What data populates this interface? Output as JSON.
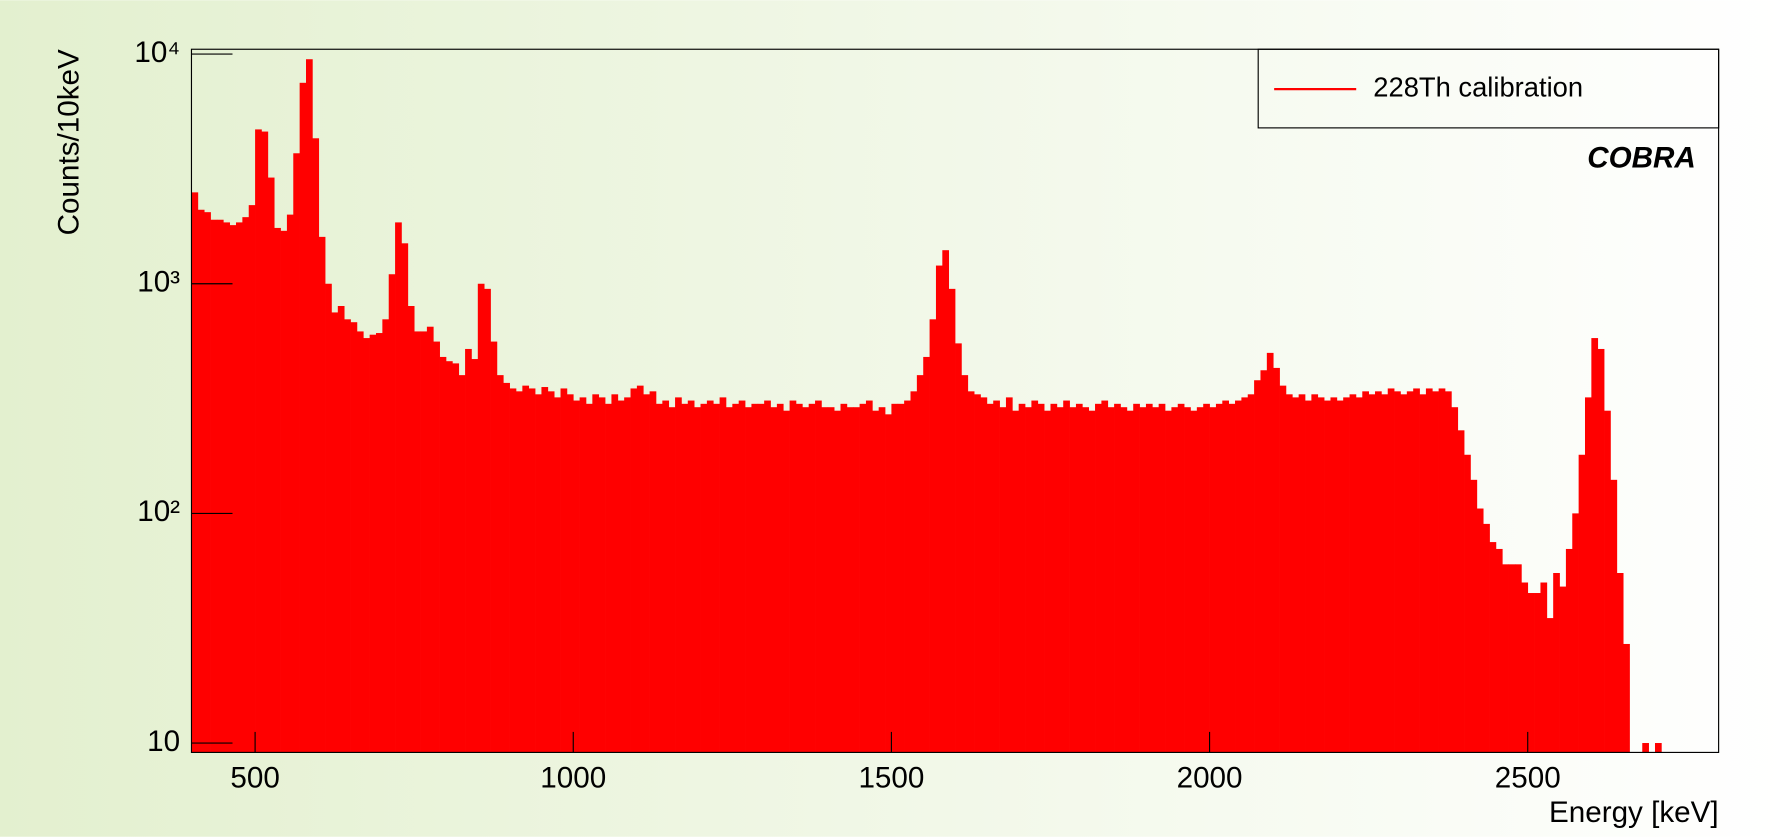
{
  "chart_data": {
    "type": "histogram",
    "xlabel": "Energy [keV]",
    "ylabel": "Counts/10keV",
    "annotation": "COBRA",
    "log_y": true,
    "legend": "upper right",
    "series": [
      {
        "name": "228Th calibration",
        "color": "#ff0000",
        "bins": [
          400,
          410,
          420,
          430,
          440,
          450,
          460,
          470,
          480,
          490,
          500,
          510,
          520,
          530,
          540,
          550,
          560,
          570,
          580,
          590,
          600,
          610,
          620,
          630,
          640,
          650,
          660,
          670,
          680,
          690,
          700,
          710,
          720,
          730,
          740,
          750,
          760,
          770,
          780,
          790,
          800,
          810,
          820,
          830,
          840,
          850,
          860,
          870,
          880,
          890,
          900,
          910,
          920,
          930,
          940,
          950,
          960,
          970,
          980,
          990,
          1000,
          1010,
          1020,
          1030,
          1040,
          1050,
          1060,
          1070,
          1080,
          1090,
          1100,
          1110,
          1120,
          1130,
          1140,
          1150,
          1160,
          1170,
          1180,
          1190,
          1200,
          1210,
          1220,
          1230,
          1240,
          1250,
          1260,
          1270,
          1280,
          1290,
          1300,
          1310,
          1320,
          1330,
          1340,
          1350,
          1360,
          1370,
          1380,
          1390,
          1400,
          1410,
          1420,
          1430,
          1440,
          1450,
          1460,
          1470,
          1480,
          1490,
          1500,
          1510,
          1520,
          1530,
          1540,
          1550,
          1560,
          1570,
          1580,
          1590,
          1600,
          1610,
          1620,
          1630,
          1640,
          1650,
          1660,
          1670,
          1680,
          1690,
          1700,
          1710,
          1720,
          1730,
          1740,
          1750,
          1760,
          1770,
          1780,
          1790,
          1800,
          1810,
          1820,
          1830,
          1840,
          1850,
          1860,
          1870,
          1880,
          1890,
          1900,
          1910,
          1920,
          1930,
          1940,
          1950,
          1960,
          1970,
          1980,
          1990,
          2000,
          2010,
          2020,
          2030,
          2040,
          2050,
          2060,
          2070,
          2080,
          2090,
          2100,
          2110,
          2120,
          2130,
          2140,
          2150,
          2160,
          2170,
          2180,
          2190,
          2200,
          2210,
          2220,
          2230,
          2240,
          2250,
          2260,
          2270,
          2280,
          2290,
          2300,
          2310,
          2320,
          2330,
          2340,
          2350,
          2360,
          2370,
          2380,
          2390,
          2400,
          2410,
          2420,
          2430,
          2440,
          2450,
          2460,
          2470,
          2480,
          2490,
          2500,
          2510,
          2520,
          2530,
          2540,
          2550,
          2560,
          2570,
          2580,
          2590,
          2600,
          2610,
          2620,
          2630,
          2640,
          2650,
          2660,
          2670,
          2680,
          2690,
          2700,
          2710,
          2720,
          2730,
          2740,
          2750,
          2760,
          2770,
          2780,
          2790,
          2800
        ],
        "values": [
          2500,
          2100,
          2050,
          1900,
          1900,
          1850,
          1800,
          1850,
          1950,
          2200,
          4700,
          4600,
          2900,
          1750,
          1700,
          2000,
          3700,
          7500,
          9500,
          4300,
          1600,
          1000,
          750,
          800,
          700,
          680,
          620,
          580,
          600,
          610,
          700,
          1100,
          1850,
          1500,
          800,
          620,
          620,
          650,
          560,
          480,
          460,
          450,
          400,
          520,
          470,
          1000,
          950,
          560,
          400,
          370,
          350,
          340,
          360,
          350,
          330,
          355,
          340,
          320,
          350,
          330,
          310,
          320,
          300,
          330,
          320,
          300,
          330,
          310,
          320,
          350,
          360,
          330,
          340,
          300,
          310,
          290,
          320,
          300,
          310,
          290,
          300,
          310,
          300,
          320,
          290,
          300,
          310,
          290,
          300,
          300,
          310,
          290,
          300,
          280,
          310,
          300,
          290,
          300,
          310,
          290,
          290,
          280,
          300,
          290,
          290,
          300,
          310,
          280,
          290,
          270,
          300,
          300,
          310,
          340,
          400,
          480,
          700,
          1200,
          1400,
          950,
          550,
          400,
          340,
          330,
          320,
          300,
          310,
          290,
          320,
          280,
          300,
          290,
          310,
          300,
          280,
          300,
          290,
          310,
          290,
          300,
          290,
          280,
          300,
          310,
          290,
          300,
          290,
          280,
          300,
          290,
          300,
          290,
          300,
          280,
          290,
          300,
          290,
          280,
          290,
          300,
          290,
          300,
          310,
          300,
          310,
          320,
          330,
          380,
          420,
          500,
          430,
          360,
          330,
          320,
          330,
          310,
          330,
          320,
          310,
          320,
          310,
          320,
          330,
          320,
          340,
          330,
          340,
          330,
          350,
          340,
          330,
          340,
          350,
          330,
          350,
          340,
          350,
          340,
          290,
          230,
          180,
          140,
          105,
          90,
          75,
          70,
          60,
          60,
          60,
          50,
          45,
          45,
          50,
          35,
          55,
          48,
          70,
          100,
          180,
          320,
          580,
          520,
          280,
          140,
          55,
          27,
          0,
          0,
          10,
          0,
          10,
          0,
          0,
          0,
          0,
          0,
          0,
          0,
          0,
          0
        ]
      }
    ],
    "xlim": [
      400,
      2800
    ],
    "xticks": [
      500,
      1000,
      1500,
      2000,
      2500
    ],
    "ylim": [
      9.1,
      10500
    ],
    "yticks": [
      10,
      {
        "value": 100,
        "label": "10²"
      },
      {
        "value": 1000,
        "label": "10³"
      },
      {
        "value": 10000,
        "label": "10⁴"
      }
    ]
  }
}
